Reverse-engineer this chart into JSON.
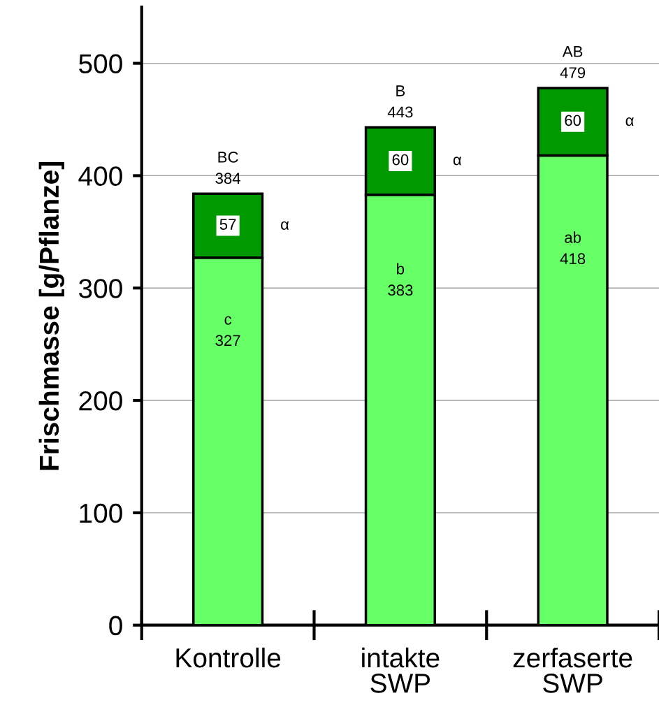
{
  "chart_data": {
    "type": "bar",
    "stacked": true,
    "ylabel": "Frischmasse [g/Pflanze]",
    "categories": [
      "Kontrolle",
      "intakte\nSWP",
      "zerfaserte\nSWP"
    ],
    "series": [
      {
        "color": "#66ff66",
        "values": [
          327,
          383,
          418
        ],
        "value_labels": [
          "c\n327",
          "b\n383",
          "ab\n418"
        ]
      },
      {
        "color": "#009900",
        "values": [
          57,
          60,
          60
        ],
        "value_labels": [
          "57",
          "60",
          "60"
        ]
      }
    ],
    "totals": [
      "BC\n384",
      "B\n443",
      "AB\n479"
    ],
    "annotations": [
      "α",
      "α",
      "α"
    ],
    "ylim": [
      0,
      550
    ],
    "yticks": [
      0,
      100,
      200,
      300,
      400,
      500
    ],
    "grid": "y"
  }
}
